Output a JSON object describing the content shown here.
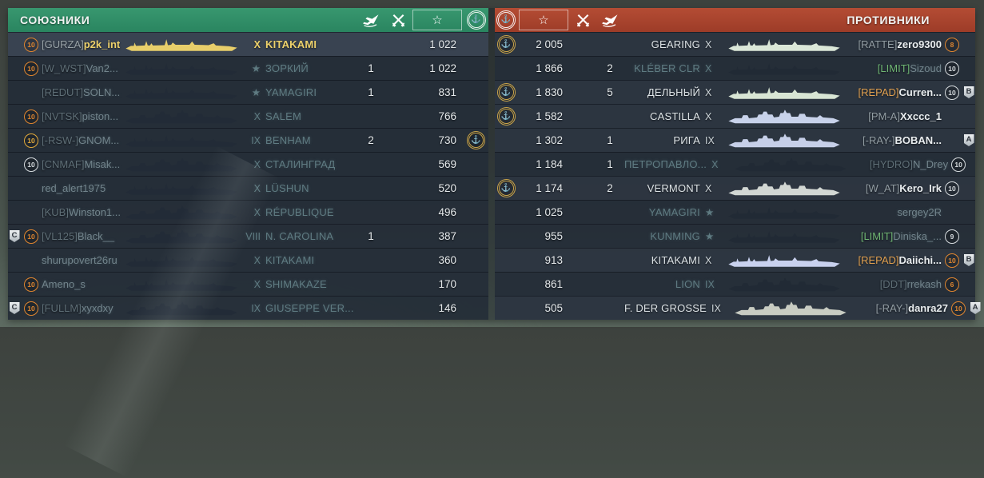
{
  "glyphs": {
    "star_outline": "☆",
    "star_filled": "★",
    "anchor": "⚓"
  },
  "column_icons": {
    "planes": "falling-plane-icon",
    "frags": "crossed-swords-icon",
    "xp": "star-icon",
    "league": "anchor-wreath-icon"
  },
  "colors": {
    "allies_header": "#2f8e67",
    "enemies_header": "#ad4530",
    "self_yellow": "#ecd06a",
    "league_gold": "#c9a44a",
    "level_orange": "#e0862f",
    "level_silver": "#d7dcdf",
    "clan_green": "#83cb84",
    "clan_orange": "#e0a050"
  },
  "teams": {
    "allies": {
      "title": "СОЮЗНИКИ",
      "side": "left",
      "sorted_column": "xp",
      "players": [
        {
          "dv": "",
          "lv": "10",
          "ls": "orange",
          "cl": "[GURZA]",
          "cc": "d",
          "nm": "p2k_int",
          "st": "dd",
          "sc": "#e8ce6a",
          "tr": "X",
          "sh": "KITAKAMI",
          "fr": "",
          "xp": "1 022",
          "em": false,
          "su": "self"
        },
        {
          "dv": "",
          "lv": "10",
          "ls": "orange",
          "cl": "[W_WST]",
          "cc": "d",
          "nm": "Van2...",
          "st": "dd",
          "sc": "#222b37",
          "tr": "★",
          "sh": "ЗОРКИЙ",
          "fr": "1",
          "xp": "1 022",
          "em": false,
          "su": "dead"
        },
        {
          "dv": "",
          "lv": "",
          "ls": "",
          "cl": "[REDUT]",
          "cc": "d",
          "nm": "SOLN...",
          "st": "dd",
          "sc": "#222b37",
          "tr": "★",
          "sh": "YAMAGIRI",
          "fr": "1",
          "xp": "831",
          "em": false,
          "su": "dead"
        },
        {
          "dv": "",
          "lv": "10",
          "ls": "orange",
          "cl": "[NVTSK]",
          "cc": "d",
          "nm": "piston...",
          "st": "bb",
          "sc": "#222b37",
          "tr": "X",
          "sh": "SALEM",
          "fr": "",
          "xp": "766",
          "em": false,
          "su": "dead"
        },
        {
          "dv": "",
          "lv": "10",
          "ls": "gold",
          "cl": "[-RSW-]",
          "cc": "d",
          "nm": "GNOM...",
          "st": "dd",
          "sc": "#222b37",
          "tr": "IX",
          "sh": "BENHAM",
          "fr": "2",
          "xp": "730",
          "em": true,
          "su": "dead"
        },
        {
          "dv": "",
          "lv": "10",
          "ls": "silver",
          "cl": "[CNMAF]",
          "cc": "d",
          "nm": "Misak...",
          "st": "bb",
          "sc": "#222b37",
          "tr": "X",
          "sh": "СТАЛИНГРАД",
          "fr": "",
          "xp": "569",
          "em": false,
          "su": "dead"
        },
        {
          "dv": "",
          "lv": "",
          "ls": "",
          "cl": "",
          "cc": "d",
          "nm": "red_alert1975",
          "st": "dd",
          "sc": "#222b37",
          "tr": "X",
          "sh": "LÜSHUN",
          "fr": "",
          "xp": "520",
          "em": false,
          "su": "dead"
        },
        {
          "dv": "",
          "lv": "",
          "ls": "",
          "cl": "[KUB]",
          "cc": "d",
          "nm": "Winston1...",
          "st": "bb",
          "sc": "#222b37",
          "tr": "X",
          "sh": "RÉPUBLIQUE",
          "fr": "",
          "xp": "496",
          "em": false,
          "su": "dead"
        },
        {
          "dv": "C",
          "lv": "10",
          "ls": "orange",
          "cl": "[VL125]",
          "cc": "d",
          "nm": "Black__",
          "st": "bb",
          "sc": "#222b37",
          "tr": "VIII",
          "sh": "N. CAROLINA",
          "fr": "1",
          "xp": "387",
          "em": false,
          "su": "dead"
        },
        {
          "dv": "",
          "lv": "",
          "ls": "",
          "cl": "",
          "cc": "d",
          "nm": "shurupovert26ru",
          "st": "dd",
          "sc": "#222b37",
          "tr": "X",
          "sh": "KITAKAMI",
          "fr": "",
          "xp": "360",
          "em": false,
          "su": "dead"
        },
        {
          "dv": "",
          "lv": "10",
          "ls": "orange",
          "cl": "",
          "cc": "d",
          "nm": "Ameno_s",
          "st": "dd",
          "sc": "#222b37",
          "tr": "X",
          "sh": "SHIMAKAZE",
          "fr": "",
          "xp": "170",
          "em": false,
          "su": "dead"
        },
        {
          "dv": "C",
          "lv": "10",
          "ls": "orange",
          "cl": "[FULLM]",
          "cc": "d",
          "nm": "xyxdxy",
          "st": "bb",
          "sc": "#222b37",
          "tr": "IX",
          "sh": "GIUSEPPE VER...",
          "fr": "",
          "xp": "146",
          "em": false,
          "su": "dead"
        }
      ]
    },
    "enemies": {
      "title": "ПРОТИВНИКИ",
      "side": "right",
      "sorted_column": "xp",
      "players": [
        {
          "dv": "",
          "lv": "8",
          "ls": "orange",
          "cl": "[RATTE]",
          "cc": "d",
          "nm": "zero9300",
          "st": "dd",
          "sc": "#dbe7d8",
          "tr": "X",
          "sh": "GEARING",
          "fr": "",
          "xp": "2 005",
          "em": true,
          "su": "alive"
        },
        {
          "dv": "",
          "lv": "10",
          "ls": "silver",
          "cl": "[LIMIT]",
          "cc": "g",
          "nm": "Sizoud",
          "st": "dd",
          "sc": "#212a35",
          "tr": "X",
          "sh": "KLÉBER CLR",
          "fr": "2",
          "xp": "1 866",
          "em": false,
          "su": "dead"
        },
        {
          "dv": "B",
          "lv": "10",
          "ls": "silver",
          "cl": "[REPAD]",
          "cc": "o",
          "nm": "Curren...",
          "st": "dd",
          "sc": "#d8e5d4",
          "tr": "X",
          "sh": "ДЕЛЬНЫЙ",
          "fr": "5",
          "xp": "1 830",
          "em": true,
          "su": "alive"
        },
        {
          "dv": "",
          "lv": "",
          "ls": "",
          "cl": "[PM-A]",
          "cc": "d",
          "nm": "Xxccc_1",
          "st": "bb",
          "sc": "#c8d2ea",
          "tr": "X",
          "sh": "CASTILLA",
          "fr": "",
          "xp": "1 582",
          "em": true,
          "su": "alive"
        },
        {
          "dv": "A",
          "lv": "",
          "ls": "",
          "cl": "[-RAY-]",
          "cc": "d",
          "nm": "BOBAN...",
          "st": "bb",
          "sc": "#c6cfe8",
          "tr": "IX",
          "sh": "РИГА",
          "fr": "1",
          "xp": "1 302",
          "em": false,
          "su": "alive"
        },
        {
          "dv": "",
          "lv": "10",
          "ls": "silver",
          "cl": "[HYDRO]",
          "cc": "d",
          "nm": "N_Drey",
          "st": "bb",
          "sc": "#212a35",
          "tr": "X",
          "sh": "ПЕТРОПАВЛО...",
          "fr": "1",
          "xp": "1 184",
          "em": false,
          "su": "dead"
        },
        {
          "dv": "",
          "lv": "10",
          "ls": "silver",
          "cl": "[W_AT]",
          "cc": "d",
          "nm": "Kero_Irk",
          "st": "bb",
          "sc": "#d2d7d3",
          "tr": "X",
          "sh": "VERMONT",
          "fr": "2",
          "xp": "1 174",
          "em": true,
          "su": "alive"
        },
        {
          "dv": "",
          "lv": "",
          "ls": "",
          "cl": "",
          "cc": "d",
          "nm": "sergey2R",
          "st": "dd",
          "sc": "#212a35",
          "tr": "★",
          "sh": "YAMAGIRI",
          "fr": "",
          "xp": "1 025",
          "em": false,
          "su": "dead"
        },
        {
          "dv": "",
          "lv": "9",
          "ls": "silver",
          "cl": "[LIMIT]",
          "cc": "g",
          "nm": "Diniska_...",
          "st": "dd",
          "sc": "#212a35",
          "tr": "★",
          "sh": "KUNMING",
          "fr": "",
          "xp": "955",
          "em": false,
          "su": "dead"
        },
        {
          "dv": "B",
          "lv": "10",
          "ls": "orange",
          "cl": "[REPAD]",
          "cc": "o",
          "nm": "Daiichi...",
          "st": "dd",
          "sc": "#c8d1ee",
          "tr": "X",
          "sh": "KITAKAMI",
          "fr": "",
          "xp": "913",
          "em": false,
          "su": "alive"
        },
        {
          "dv": "",
          "lv": "6",
          "ls": "orange",
          "cl": "[DDT]",
          "cc": "d",
          "nm": "rrekash",
          "st": "bb",
          "sc": "#212a35",
          "tr": "IX",
          "sh": "LION",
          "fr": "",
          "xp": "861",
          "em": false,
          "su": "dead"
        },
        {
          "dv": "A",
          "lv": "10",
          "ls": "orange",
          "cl": "[-RAY-]",
          "cc": "d",
          "nm": "danra27",
          "st": "bb",
          "sc": "#c8ccc2",
          "tr": "IX",
          "sh": "F. DER GROSSE",
          "fr": "",
          "xp": "505",
          "em": false,
          "su": "alive"
        }
      ]
    }
  }
}
